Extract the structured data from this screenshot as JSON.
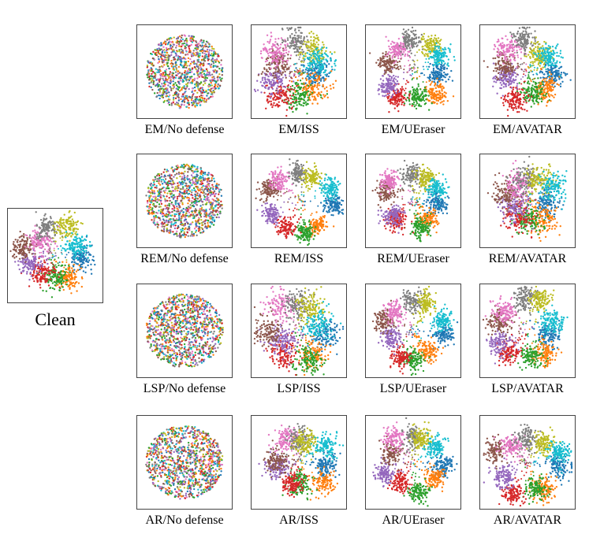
{
  "palette": [
    "#1f77b4",
    "#ff7f0e",
    "#2ca02c",
    "#d62728",
    "#9467bd",
    "#8c564b",
    "#e377c2",
    "#7f7f7f",
    "#bcbd22",
    "#17becf"
  ],
  "clean": {
    "label": "Clean",
    "layout": "star"
  },
  "rows": [
    {
      "attack": "EM",
      "panels": [
        {
          "label": "EM/No defense",
          "layout": "mixed"
        },
        {
          "label": "EM/ISS",
          "layout": "dense"
        },
        {
          "label": "EM/UEraser",
          "layout": "ring"
        },
        {
          "label": "EM/AVATAR",
          "layout": "star"
        }
      ]
    },
    {
      "attack": "REM",
      "panels": [
        {
          "label": "REM/No defense",
          "layout": "mixed"
        },
        {
          "label": "REM/ISS",
          "layout": "separated"
        },
        {
          "label": "REM/UEraser",
          "layout": "ring"
        },
        {
          "label": "REM/AVATAR",
          "layout": "dense"
        }
      ]
    },
    {
      "attack": "LSP",
      "panels": [
        {
          "label": "LSP/No defense",
          "layout": "mixed"
        },
        {
          "label": "LSP/ISS",
          "layout": "dense"
        },
        {
          "label": "LSP/UEraser",
          "layout": "ring"
        },
        {
          "label": "LSP/AVATAR",
          "layout": "star"
        }
      ]
    },
    {
      "attack": "AR",
      "panels": [
        {
          "label": "AR/No defense",
          "layout": "mixed"
        },
        {
          "label": "AR/ISS",
          "layout": "star"
        },
        {
          "label": "AR/UEraser",
          "layout": "ring"
        },
        {
          "label": "AR/AVATAR",
          "layout": "star"
        }
      ]
    }
  ]
}
